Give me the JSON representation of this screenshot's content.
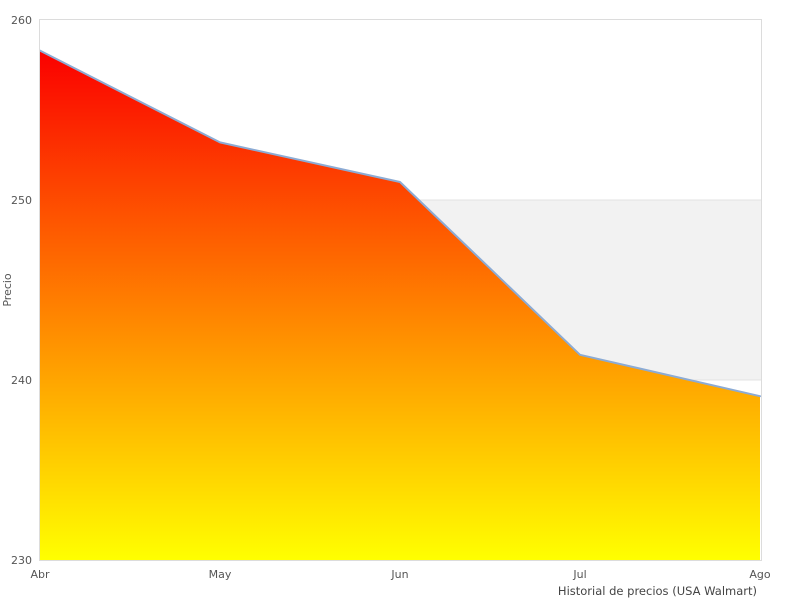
{
  "chart_data": {
    "type": "area",
    "title": "",
    "caption": "Historial de precios (USA Walmart)",
    "ylabel": "Precio",
    "categories": [
      "Abr",
      "May",
      "Jun",
      "Jul",
      "Ago"
    ],
    "values": [
      258.3,
      253.2,
      251.0,
      241.4,
      239.1
    ],
    "yticks": [
      260,
      250,
      240,
      230
    ],
    "ylim": [
      230,
      260
    ],
    "band": {
      "from": 240,
      "to": 250,
      "fill": "#f2f2f2",
      "edge": "#e3e3e3"
    },
    "line_color": "#8cabd4",
    "gradient": {
      "top": "#fb0000",
      "mid": "#ff8000",
      "bottom": "#ffff00"
    },
    "plot_border_color": "#dcdcdc",
    "legend": null,
    "grid": false
  }
}
